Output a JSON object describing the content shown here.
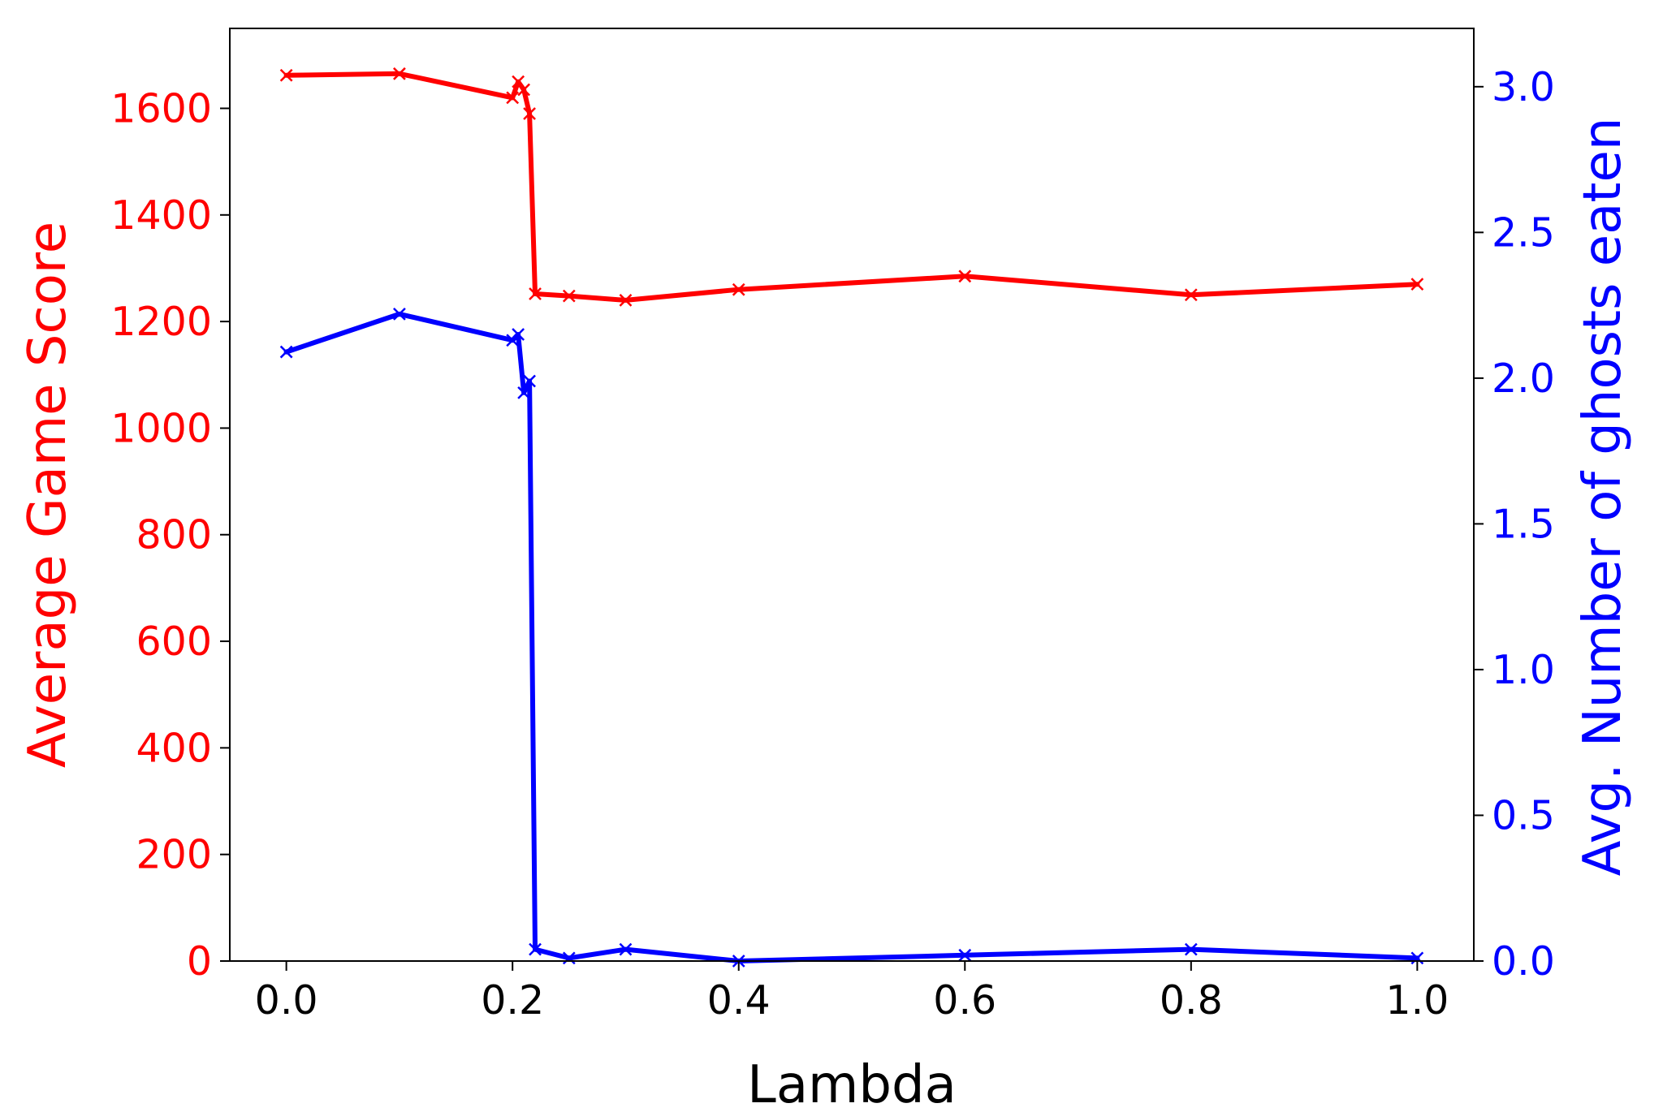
{
  "chart_data": {
    "type": "line",
    "xlabel": "Lambda",
    "ylabel_left": "Average Game Score",
    "ylabel_right": "Avg. Number of ghosts eaten",
    "xlim": [
      -0.05,
      1.05
    ],
    "ylim_left": [
      0,
      1750
    ],
    "ylim_right": [
      0,
      3.2
    ],
    "xticks": [
      "0.0",
      "0.2",
      "0.4",
      "0.6",
      "0.8",
      "1.0"
    ],
    "yticks_left": [
      "0",
      "200",
      "400",
      "600",
      "800",
      "1000",
      "1200",
      "1400",
      "1600"
    ],
    "yticks_right": [
      "0.0",
      "0.5",
      "1.0",
      "1.5",
      "2.0",
      "2.5",
      "3.0"
    ],
    "grid": false,
    "colors": {
      "left": "#ff0000",
      "right": "#0000ff",
      "frame": "#000000"
    },
    "series": [
      {
        "axis": "left",
        "marker": "x",
        "color": "#ff0000",
        "x": [
          0.0,
          0.1,
          0.2,
          0.205,
          0.21,
          0.215,
          0.22,
          0.25,
          0.3,
          0.4,
          0.6,
          0.8,
          1.0
        ],
        "values": [
          1662,
          1665,
          1620,
          1650,
          1635,
          1590,
          1252,
          1248,
          1240,
          1260,
          1285,
          1250,
          1270
        ]
      },
      {
        "axis": "right",
        "marker": "x",
        "color": "#0000ff",
        "x": [
          0.0,
          0.1,
          0.2,
          0.205,
          0.21,
          0.215,
          0.22,
          0.25,
          0.3,
          0.4,
          0.6,
          0.8,
          1.0
        ],
        "values": [
          2.09,
          2.22,
          2.13,
          2.15,
          1.95,
          1.99,
          0.04,
          0.01,
          0.04,
          0.0,
          0.02,
          0.04,
          0.01
        ]
      }
    ]
  }
}
